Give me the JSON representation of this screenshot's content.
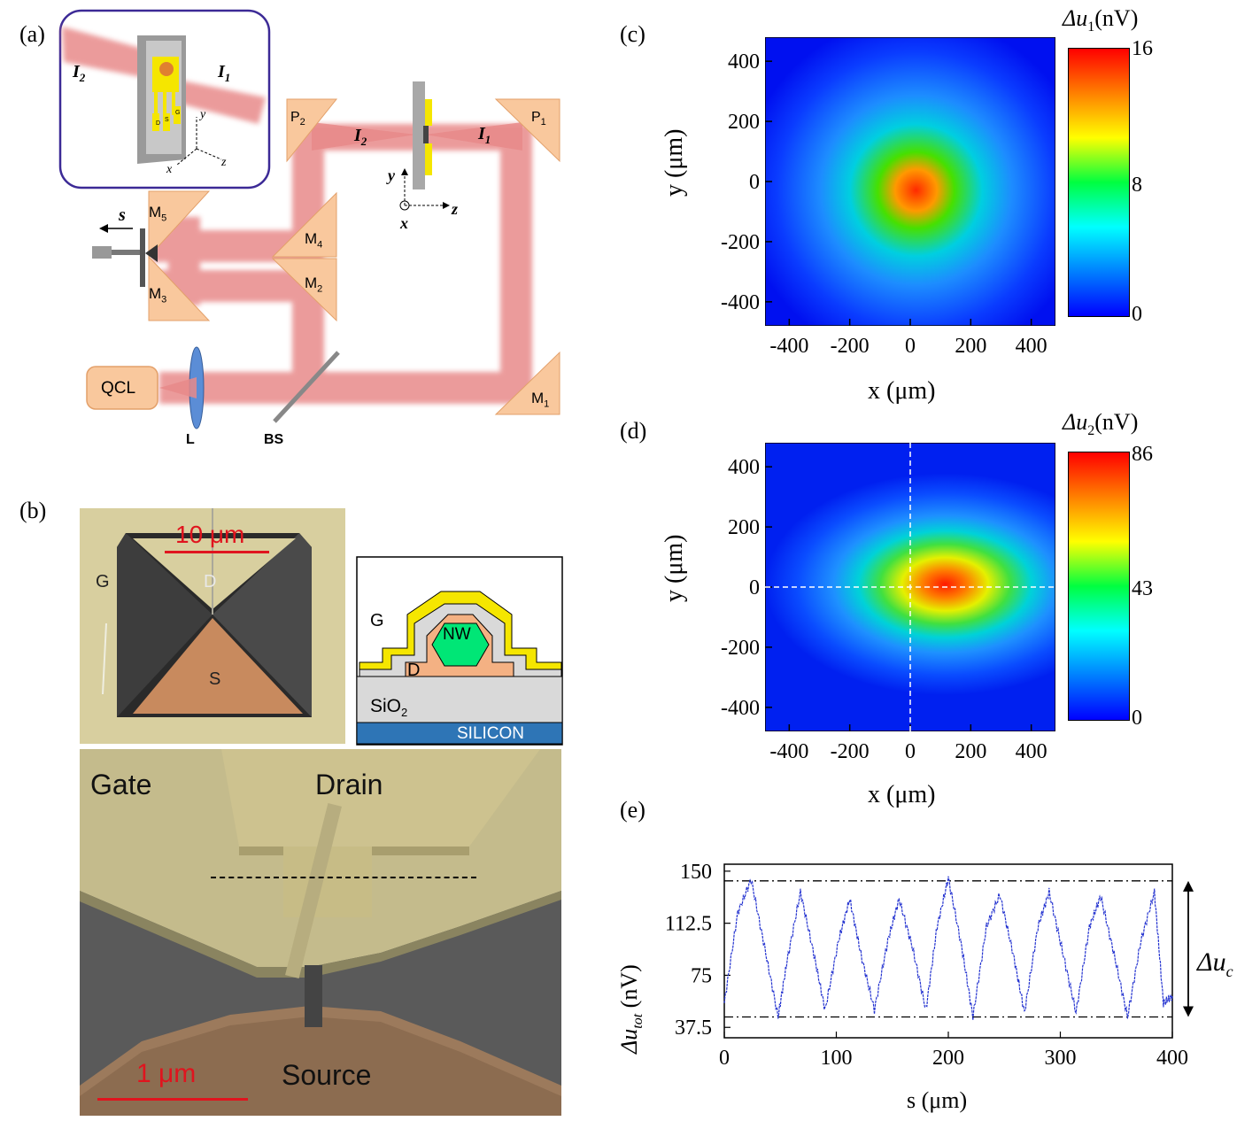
{
  "panels": {
    "a": "(a)",
    "b": "(b)",
    "c": "(c)",
    "d": "(d)",
    "e": "(e)"
  },
  "setup": {
    "labels": {
      "I1": "I",
      "I1_sub": "1",
      "I2": "I",
      "I2_sub": "2",
      "P1": "P",
      "P1_sub": "1",
      "P2": "P",
      "P2_sub": "2",
      "M1": "M",
      "M1_sub": "1",
      "M2": "M",
      "M2_sub": "2",
      "M3": "M",
      "M3_sub": "3",
      "M4": "M",
      "M4_sub": "4",
      "M5": "M",
      "M5_sub": "5",
      "qcl": "QCL",
      "lens": "L",
      "bs": "BS",
      "s": "s",
      "x": "x",
      "y": "y",
      "z": "z",
      "inset_I1": "I",
      "inset_I1_sub": "1",
      "inset_I2": "I",
      "inset_I2_sub": "2",
      "pad_d": "D",
      "pad_s": "S",
      "pad_g": "G"
    },
    "colors": {
      "beam": "#e88a8a",
      "mirror": "#f9c89d",
      "qcl": "#f9c89d",
      "inset_border": "#3c2a96",
      "gold": "#f5e600"
    }
  },
  "device": {
    "sem1_scale": "10 μm",
    "sem1_labels": {
      "g": "G",
      "d": "D",
      "s": "S"
    },
    "cross_section": {
      "g": "G",
      "d": "D",
      "nw": "NW",
      "sio2": "SiO",
      "sio2_sub": "2",
      "silicon": "SILICON"
    },
    "sem2_labels": {
      "gate": "Gate",
      "drain": "Drain",
      "source": "Source",
      "scale": "1 μm"
    }
  },
  "colors": {
    "scale_red": "#e0141e",
    "plot_blue": "#2433d0"
  },
  "chart_data": [
    {
      "id": "c",
      "type": "heatmap",
      "title": "",
      "xlabel": "x (μm)",
      "ylabel": "y (μm)",
      "xlim": [
        -480,
        480
      ],
      "ylim": [
        -480,
        480
      ],
      "xticks": [
        -400,
        -200,
        0,
        200,
        400
      ],
      "yticks": [
        400,
        200,
        0,
        -200,
        -400
      ],
      "colorbar": {
        "label": "Δu",
        "label_sub": "1",
        "unit": "(nV)",
        "ticks": [
          16,
          8,
          0
        ],
        "range": [
          0,
          16
        ]
      },
      "peak": {
        "x": 0,
        "y": -50,
        "value": 16
      },
      "grid": false
    },
    {
      "id": "d",
      "type": "heatmap",
      "title": "",
      "xlabel": "x (μm)",
      "ylabel": "y (μm)",
      "xlim": [
        -480,
        480
      ],
      "ylim": [
        -480,
        480
      ],
      "xticks": [
        -400,
        -200,
        0,
        200,
        400
      ],
      "yticks": [
        400,
        200,
        0,
        -200,
        -400
      ],
      "colorbar": {
        "label": "Δu",
        "label_sub": "2",
        "unit": "(nV)",
        "ticks": [
          86,
          43,
          0
        ],
        "range": [
          0,
          86
        ]
      },
      "peak": {
        "x": 100,
        "y": 20,
        "value": 86
      },
      "crosshair": {
        "x": 0,
        "y": 0
      },
      "grid": false
    },
    {
      "id": "e",
      "type": "line",
      "title": "",
      "xlabel": "s (μm)",
      "ylabel": "Δu",
      "ylabel_sub": "tot",
      "ylabel_unit": "(nV)",
      "xlim": [
        0,
        400
      ],
      "ylim": [
        30,
        155
      ],
      "xticks": [
        0,
        100,
        200,
        300,
        400
      ],
      "yticks": [
        150,
        112.5,
        75,
        37.5
      ],
      "ytick_labels": [
        "150",
        "112.5",
        "75",
        "37.5"
      ],
      "hlines": [
        143,
        45
      ],
      "annotation": {
        "label": "Δu",
        "label_sub": "c"
      },
      "series": [
        {
          "x": [
            0,
            12,
            24,
            36,
            48,
            56,
            68,
            80,
            90,
            102,
            112,
            122,
            134,
            146,
            156,
            168,
            180,
            190,
            200,
            212,
            222,
            234,
            246,
            258,
            268,
            280,
            290,
            302,
            314,
            326,
            336,
            348,
            360,
            372,
            384,
            392,
            400
          ],
          "values": [
            55,
            120,
            144,
            95,
            45,
            85,
            135,
            90,
            50,
            100,
            130,
            90,
            50,
            100,
            130,
            95,
            50,
            110,
            145,
            95,
            45,
            110,
            133,
            90,
            48,
            110,
            135,
            92,
            48,
            110,
            132,
            90,
            45,
            100,
            135,
            55,
            60
          ]
        }
      ]
    }
  ]
}
